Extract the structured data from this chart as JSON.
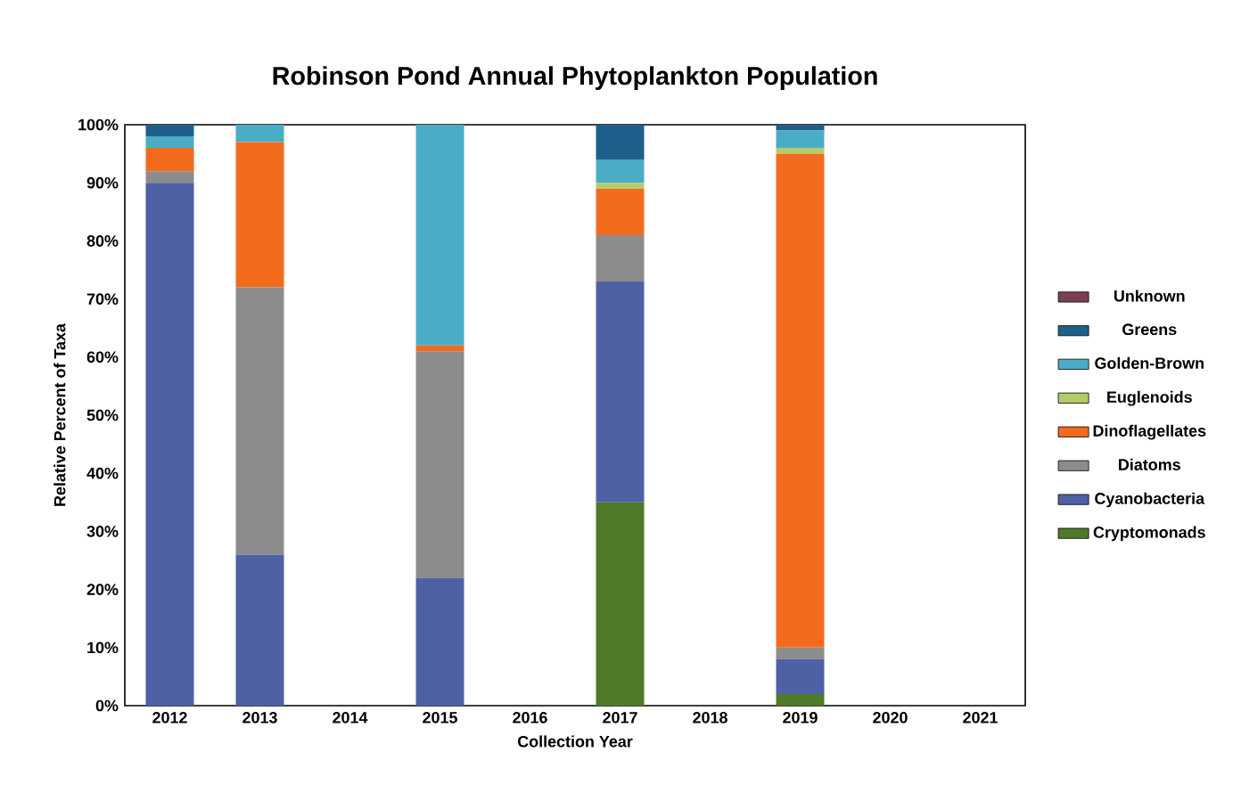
{
  "chart_data": {
    "type": "bar",
    "stacked": true,
    "title": "Robinson Pond Annual Phytoplankton Population",
    "xlabel": "Collection Year",
    "ylabel": "Relative Percent of Taxa",
    "categories": [
      "2012",
      "2013",
      "2014",
      "2015",
      "2016",
      "2017",
      "2018",
      "2019",
      "2020",
      "2021"
    ],
    "series": [
      {
        "name": "Cryptomonads",
        "color": "#4f7a28",
        "values": [
          0,
          0,
          0,
          0,
          0,
          35,
          0,
          2,
          0,
          0
        ]
      },
      {
        "name": "Cyanobacteria",
        "color": "#4f61a5",
        "values": [
          90,
          26,
          0,
          22,
          0,
          38,
          0,
          6,
          0,
          0
        ]
      },
      {
        "name": "Diatoms",
        "color": "#8c8c8c",
        "values": [
          2,
          46,
          0,
          39,
          0,
          8,
          0,
          2,
          0,
          0
        ]
      },
      {
        "name": "Dinoflagellates",
        "color": "#f26b1d",
        "values": [
          4,
          25,
          0,
          1,
          0,
          8,
          0,
          85,
          0,
          0
        ]
      },
      {
        "name": "Euglenoids",
        "color": "#b5cc6a",
        "values": [
          0,
          0,
          0,
          0,
          0,
          1,
          0,
          1,
          0,
          0
        ]
      },
      {
        "name": "Golden-Brown",
        "color": "#4bacc6",
        "values": [
          2,
          3,
          0,
          38,
          0,
          4,
          0,
          3,
          0,
          0
        ]
      },
      {
        "name": "Greens",
        "color": "#1f5f8b",
        "values": [
          2,
          0,
          0,
          0,
          0,
          6,
          0,
          1,
          0,
          0
        ]
      },
      {
        "name": "Unknown",
        "color": "#7b3f55",
        "values": [
          0,
          0,
          0,
          0,
          0,
          0,
          0,
          0,
          0,
          0
        ]
      }
    ],
    "ylim": [
      0,
      100
    ],
    "yticks": [
      {
        "value": 0,
        "label": "0%"
      },
      {
        "value": 10,
        "label": "10%"
      },
      {
        "value": 20,
        "label": "20%"
      },
      {
        "value": 30,
        "label": "30%"
      },
      {
        "value": 40,
        "label": "40%"
      },
      {
        "value": 50,
        "label": "50%"
      },
      {
        "value": 60,
        "label": "60%"
      },
      {
        "value": 70,
        "label": "70%"
      },
      {
        "value": 80,
        "label": "80%"
      },
      {
        "value": 90,
        "label": "90%"
      },
      {
        "value": 100,
        "label": "100%"
      }
    ],
    "grid": false,
    "legend": "right"
  }
}
